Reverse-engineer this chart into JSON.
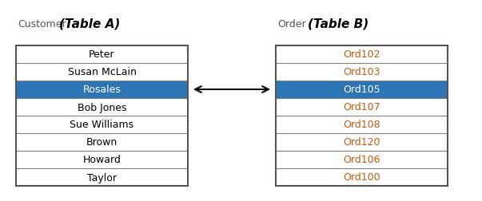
{
  "table_a_title_normal": "Customer",
  "table_a_title_bold": "(Table A)",
  "table_b_title_normal": "Order",
  "table_b_title_bold": "(Table B)",
  "table_a_rows": [
    "Peter",
    "Susan McLain",
    "Rosales",
    "Bob Jones",
    "Sue Williams",
    "Brown",
    "Howard",
    "Taylor"
  ],
  "table_b_rows": [
    "Ord102",
    "Ord103",
    "Ord105",
    "Ord107",
    "Ord108",
    "Ord120",
    "Ord106",
    "Ord100"
  ],
  "highlight_row_a": 2,
  "highlight_row_b": 2,
  "highlight_color": "#2E75B6",
  "highlight_text_color": "#ffffff",
  "normal_text_color_a": "#000000",
  "normal_text_color_b": "#C55A11",
  "border_color": "#808080",
  "bg_color": "#ffffff",
  "fig_width": 6.03,
  "fig_height": 2.53,
  "dpi": 100
}
